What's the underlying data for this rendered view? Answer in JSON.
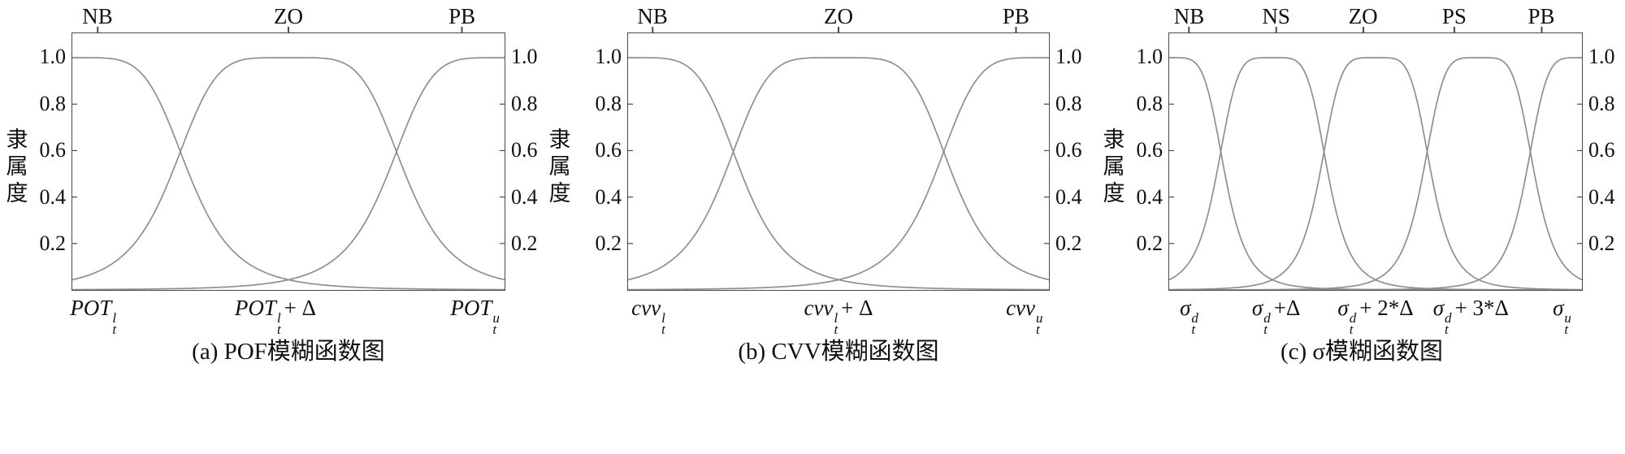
{
  "figure": {
    "background": "#ffffff",
    "axis_color": "#4a4a4a",
    "curve_color": "#8f8f8f",
    "text_color": "#111111",
    "y_axis_title": "隶属度"
  },
  "chart_data": [
    {
      "id": "a",
      "type": "line",
      "title": "(a) POF模糊函数图",
      "ylabel_left": "隶属度",
      "ylabel_right": "隶属度",
      "ylim": [
        0,
        1.1
      ],
      "xlim_normalized": [
        0,
        1
      ],
      "grid": false,
      "legend": "none",
      "y_ticks": [
        {
          "label": "1.0",
          "value": 1.0
        },
        {
          "label": "0.8",
          "value": 0.8
        },
        {
          "label": "0.6",
          "value": 0.6
        },
        {
          "label": "0.4",
          "value": 0.4
        },
        {
          "label": "0.2",
          "value": 0.2
        }
      ],
      "terms": [
        {
          "label": "NB",
          "position": 0.06
        },
        {
          "label": "ZO",
          "position": 0.5
        },
        {
          "label": "PB",
          "position": 0.9
        }
      ],
      "series": [
        {
          "name": "NB",
          "shape": "generalized_bell",
          "center": 0.0,
          "half_width": 0.27,
          "exponent": 5,
          "peak": 1.0
        },
        {
          "name": "ZO",
          "shape": "generalized_bell",
          "center": 0.5,
          "half_width": 0.27,
          "exponent": 5,
          "peak": 1.0
        },
        {
          "name": "PB",
          "shape": "generalized_bell",
          "center": 1.0,
          "half_width": 0.27,
          "exponent": 5,
          "peak": 1.0
        }
      ],
      "x_labels": [
        {
          "base": "POT",
          "sup": "l",
          "sub": "t",
          "suffix": "",
          "position": 0.05
        },
        {
          "base": "POT",
          "sup": "l",
          "sub": "t",
          "suffix": "+ Δ",
          "position": 0.47
        },
        {
          "base": "POT",
          "sup": "u",
          "sub": "t",
          "suffix": "",
          "position": 0.93
        }
      ]
    },
    {
      "id": "b",
      "type": "line",
      "title": "(b) CVV模糊函数图",
      "ylabel_left": "",
      "ylabel_right": "",
      "ylim": [
        0,
        1.1
      ],
      "xlim_normalized": [
        0,
        1
      ],
      "grid": false,
      "legend": "none",
      "y_ticks": [
        {
          "label": "1.0",
          "value": 1.0
        },
        {
          "label": "0.8",
          "value": 0.8
        },
        {
          "label": "0.6",
          "value": 0.6
        },
        {
          "label": "0.4",
          "value": 0.4
        },
        {
          "label": "0.2",
          "value": 0.2
        }
      ],
      "terms": [
        {
          "label": "NB",
          "position": 0.06
        },
        {
          "label": "ZO",
          "position": 0.5
        },
        {
          "label": "PB",
          "position": 0.92
        }
      ],
      "series": [
        {
          "name": "NB",
          "shape": "generalized_bell",
          "center": 0.0,
          "half_width": 0.27,
          "exponent": 5,
          "peak": 1.0
        },
        {
          "name": "ZO",
          "shape": "generalized_bell",
          "center": 0.5,
          "half_width": 0.27,
          "exponent": 5,
          "peak": 1.0
        },
        {
          "name": "PB",
          "shape": "generalized_bell",
          "center": 1.0,
          "half_width": 0.27,
          "exponent": 5,
          "peak": 1.0
        }
      ],
      "x_labels": [
        {
          "base": "cvv",
          "sup": "l",
          "sub": "t",
          "suffix": "",
          "position": 0.05
        },
        {
          "base": "cvv",
          "sup": "l",
          "sub": "t",
          "suffix": "+ Δ",
          "position": 0.5
        },
        {
          "base": "cvv",
          "sup": "u",
          "sub": "t",
          "suffix": "",
          "position": 0.94
        }
      ]
    },
    {
      "id": "c",
      "type": "line",
      "title": "(c) σ模糊函数图",
      "ylabel_left": "隶属度",
      "ylabel_right": "",
      "ylim": [
        0,
        1.1
      ],
      "xlim_normalized": [
        0,
        1
      ],
      "grid": false,
      "legend": "none",
      "y_ticks": [
        {
          "label": "1.0",
          "value": 1.0
        },
        {
          "label": "0.8",
          "value": 0.8
        },
        {
          "label": "0.6",
          "value": 0.6
        },
        {
          "label": "0.4",
          "value": 0.4
        },
        {
          "label": "0.2",
          "value": 0.2
        }
      ],
      "terms": [
        {
          "label": "NB",
          "position": 0.05
        },
        {
          "label": "NS",
          "position": 0.26
        },
        {
          "label": "ZO",
          "position": 0.47
        },
        {
          "label": "PS",
          "position": 0.69
        },
        {
          "label": "PB",
          "position": 0.9
        }
      ],
      "series": [
        {
          "name": "NB",
          "shape": "generalized_bell",
          "center": 0.0,
          "half_width": 0.135,
          "exponent": 5,
          "peak": 1.0
        },
        {
          "name": "NS",
          "shape": "generalized_bell",
          "center": 0.25,
          "half_width": 0.135,
          "exponent": 5,
          "peak": 1.0
        },
        {
          "name": "ZO",
          "shape": "generalized_bell",
          "center": 0.5,
          "half_width": 0.135,
          "exponent": 5,
          "peak": 1.0
        },
        {
          "name": "PS",
          "shape": "generalized_bell",
          "center": 0.75,
          "half_width": 0.135,
          "exponent": 5,
          "peak": 1.0
        },
        {
          "name": "PB",
          "shape": "generalized_bell",
          "center": 1.0,
          "half_width": 0.135,
          "exponent": 5,
          "peak": 1.0
        }
      ],
      "x_labels": [
        {
          "base": "σ",
          "sup": "d",
          "sub": "t",
          "suffix": "",
          "position": 0.05
        },
        {
          "base": "σ",
          "sup": "d",
          "sub": "t",
          "suffix": "+Δ",
          "position": 0.26
        },
        {
          "base": "σ",
          "sup": "d",
          "sub": "t",
          "suffix": "+ 2*Δ",
          "position": 0.5
        },
        {
          "base": "σ",
          "sup": "d",
          "sub": "t",
          "suffix": "+ 3*Δ",
          "position": 0.73
        },
        {
          "base": "σ",
          "sup": "u",
          "sub": "t",
          "suffix": "",
          "position": 0.95
        }
      ]
    }
  ]
}
